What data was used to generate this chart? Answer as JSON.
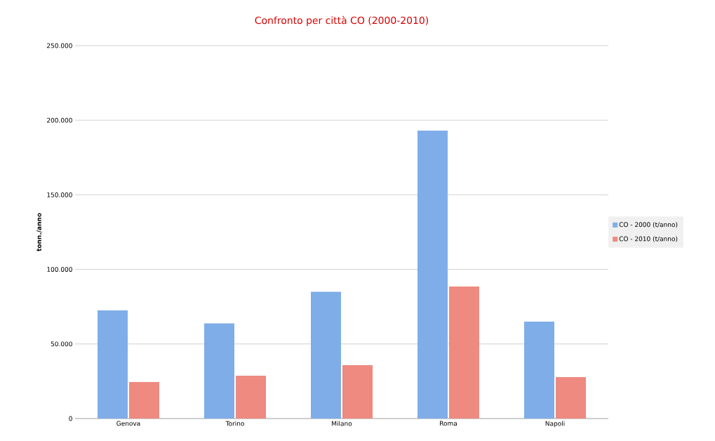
{
  "chart_data": {
    "type": "bar",
    "title": "Confronto per città CO  (2000-2010)",
    "ylabel": "tonn./anno",
    "categories": [
      "Genova",
      "Torino",
      "Milano",
      "Roma",
      "Napoli"
    ],
    "series": [
      {
        "name": "CO - 2000 (t/anno)",
        "color": "#7fade8",
        "values": [
          72500,
          63800,
          85000,
          193000,
          65000
        ]
      },
      {
        "name": "CO - 2010 (t/anno)",
        "color": "#ee8a80",
        "values": [
          24500,
          28700,
          35800,
          88500,
          27800
        ]
      }
    ],
    "ylim": [
      0,
      250000
    ],
    "yticks": [
      0,
      {
        "value": 50000,
        "label": "50.000"
      },
      {
        "value": 100000,
        "label": "100.000"
      },
      {
        "value": 150000,
        "label": "150.000"
      },
      {
        "value": 200000,
        "label": "200.000"
      },
      {
        "value": 250000,
        "label": "250.000"
      }
    ],
    "grid": "y",
    "legend": "right"
  }
}
